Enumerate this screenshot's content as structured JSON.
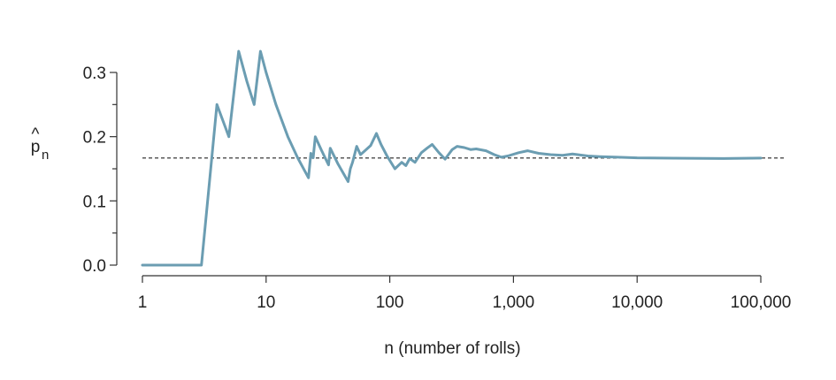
{
  "chart_data": {
    "type": "line",
    "title": "",
    "xlabel": "n (number of rolls)",
    "ylabel": {
      "base": "p",
      "accent": "^",
      "subscript": "n"
    },
    "x_scale": "log",
    "xlim": [
      1,
      100000
    ],
    "ylim": [
      0,
      0.333
    ],
    "x_ticks": [
      {
        "value": 1,
        "label": "1"
      },
      {
        "value": 10,
        "label": "10"
      },
      {
        "value": 100,
        "label": "100"
      },
      {
        "value": 1000,
        "label": "1,000"
      },
      {
        "value": 10000,
        "label": "10,000"
      },
      {
        "value": 100000,
        "label": "100,000"
      }
    ],
    "y_ticks": [
      {
        "value": 0.0,
        "label": "0.0"
      },
      {
        "value": 0.1,
        "label": "0.1"
      },
      {
        "value": 0.2,
        "label": "0.2"
      },
      {
        "value": 0.3,
        "label": "0.3"
      }
    ],
    "y_minor_ticks": [
      0.05,
      0.15,
      0.25
    ],
    "reference_line": {
      "y": 0.1667,
      "style": "dashed"
    },
    "grid": false,
    "series": [
      {
        "color": "#6b9db2",
        "points": [
          [
            1,
            0.0
          ],
          [
            3,
            0.0
          ],
          [
            4,
            0.25
          ],
          [
            5,
            0.2
          ],
          [
            6,
            0.333
          ],
          [
            7,
            0.286
          ],
          [
            8,
            0.25
          ],
          [
            9,
            0.333
          ],
          [
            10,
            0.3
          ],
          [
            12,
            0.25
          ],
          [
            15,
            0.2
          ],
          [
            18,
            0.167
          ],
          [
            22,
            0.136
          ],
          [
            23,
            0.174
          ],
          [
            24,
            0.167
          ],
          [
            25,
            0.2
          ],
          [
            28,
            0.179
          ],
          [
            32,
            0.156
          ],
          [
            33,
            0.182
          ],
          [
            38,
            0.158
          ],
          [
            46,
            0.13
          ],
          [
            48,
            0.15
          ],
          [
            50,
            0.16
          ],
          [
            54,
            0.185
          ],
          [
            58,
            0.172
          ],
          [
            62,
            0.177
          ],
          [
            70,
            0.186
          ],
          [
            78,
            0.205
          ],
          [
            85,
            0.188
          ],
          [
            95,
            0.17
          ],
          [
            110,
            0.15
          ],
          [
            125,
            0.16
          ],
          [
            135,
            0.155
          ],
          [
            145,
            0.166
          ],
          [
            160,
            0.16
          ],
          [
            180,
            0.175
          ],
          [
            200,
            0.182
          ],
          [
            220,
            0.188
          ],
          [
            250,
            0.175
          ],
          [
            280,
            0.165
          ],
          [
            320,
            0.18
          ],
          [
            350,
            0.185
          ],
          [
            400,
            0.183
          ],
          [
            450,
            0.18
          ],
          [
            500,
            0.181
          ],
          [
            600,
            0.178
          ],
          [
            700,
            0.172
          ],
          [
            800,
            0.168
          ],
          [
            900,
            0.17
          ],
          [
            1100,
            0.175
          ],
          [
            1300,
            0.178
          ],
          [
            1600,
            0.174
          ],
          [
            2000,
            0.172
          ],
          [
            2500,
            0.171
          ],
          [
            3000,
            0.173
          ],
          [
            4000,
            0.17
          ],
          [
            5000,
            0.169
          ],
          [
            7000,
            0.168
          ],
          [
            10000,
            0.167
          ],
          [
            20000,
            0.1665
          ],
          [
            50000,
            0.166
          ],
          [
            100000,
            0.1667
          ]
        ]
      }
    ]
  }
}
